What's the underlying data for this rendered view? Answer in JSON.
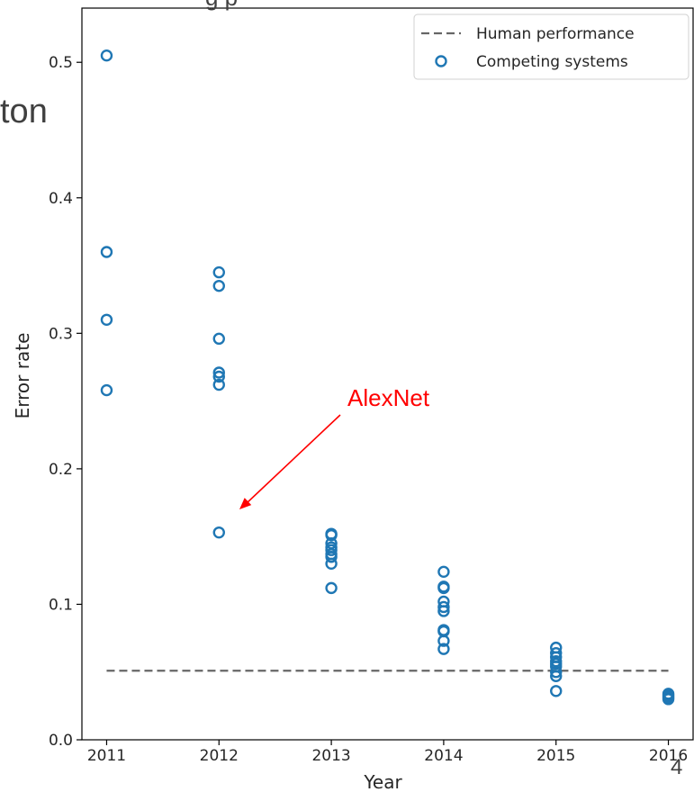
{
  "slide": {
    "title_fragment": "g      p",
    "side_fragment": "ton",
    "page_number": "4"
  },
  "chart_data": {
    "type": "scatter",
    "xlabel": "Year",
    "ylabel": "Error rate",
    "xlim": [
      2010.78,
      2016.22
    ],
    "ylim": [
      0,
      0.54
    ],
    "xticks": [
      2011,
      2012,
      2013,
      2014,
      2015,
      2016
    ],
    "xtick_labels": [
      "2011",
      "2012",
      "2013",
      "2014",
      "2015",
      "2016"
    ],
    "yticks": [
      0.0,
      0.1,
      0.2,
      0.3,
      0.4,
      0.5
    ],
    "ytick_labels": [
      "0.0",
      "0.1",
      "0.2",
      "0.3",
      "0.4",
      "0.5"
    ],
    "grid": false,
    "legend": {
      "placement": "top-right",
      "entries": [
        {
          "label": "Human performance",
          "style": "dashed-line",
          "color": "#666666"
        },
        {
          "label": "Competing systems",
          "style": "circle-marker",
          "color": "#1f77b4"
        }
      ]
    },
    "series": [
      {
        "name": "Human performance",
        "kind": "line",
        "color": "#666666",
        "x": [
          2011,
          2016
        ],
        "y": [
          0.051,
          0.051
        ]
      },
      {
        "name": "Competing systems",
        "kind": "scatter",
        "color": "#1f77b4",
        "points": [
          [
            2011,
            0.505
          ],
          [
            2011,
            0.36
          ],
          [
            2011,
            0.31
          ],
          [
            2011,
            0.258
          ],
          [
            2012,
            0.345
          ],
          [
            2012,
            0.335
          ],
          [
            2012,
            0.296
          ],
          [
            2012,
            0.271
          ],
          [
            2012,
            0.268
          ],
          [
            2012,
            0.262
          ],
          [
            2012,
            0.153
          ],
          [
            2013,
            0.152
          ],
          [
            2013,
            0.151
          ],
          [
            2013,
            0.145
          ],
          [
            2013,
            0.142
          ],
          [
            2013,
            0.14
          ],
          [
            2013,
            0.137
          ],
          [
            2013,
            0.135
          ],
          [
            2013,
            0.13
          ],
          [
            2013,
            0.112
          ],
          [
            2014,
            0.124
          ],
          [
            2014,
            0.113
          ],
          [
            2014,
            0.112
          ],
          [
            2014,
            0.102
          ],
          [
            2014,
            0.098
          ],
          [
            2014,
            0.095
          ],
          [
            2014,
            0.081
          ],
          [
            2014,
            0.08
          ],
          [
            2014,
            0.073
          ],
          [
            2014,
            0.067
          ],
          [
            2015,
            0.068
          ],
          [
            2015,
            0.064
          ],
          [
            2015,
            0.061
          ],
          [
            2015,
            0.058
          ],
          [
            2015,
            0.056
          ],
          [
            2015,
            0.054
          ],
          [
            2015,
            0.05
          ],
          [
            2015,
            0.047
          ],
          [
            2015,
            0.036
          ],
          [
            2016,
            0.034
          ],
          [
            2016,
            0.033
          ],
          [
            2016,
            0.032
          ],
          [
            2016,
            0.031
          ],
          [
            2016,
            0.03
          ]
        ]
      }
    ],
    "annotations": [
      {
        "text": "AlexNet",
        "color": "#ff0000",
        "x": 2012,
        "y": 0.153
      }
    ]
  }
}
